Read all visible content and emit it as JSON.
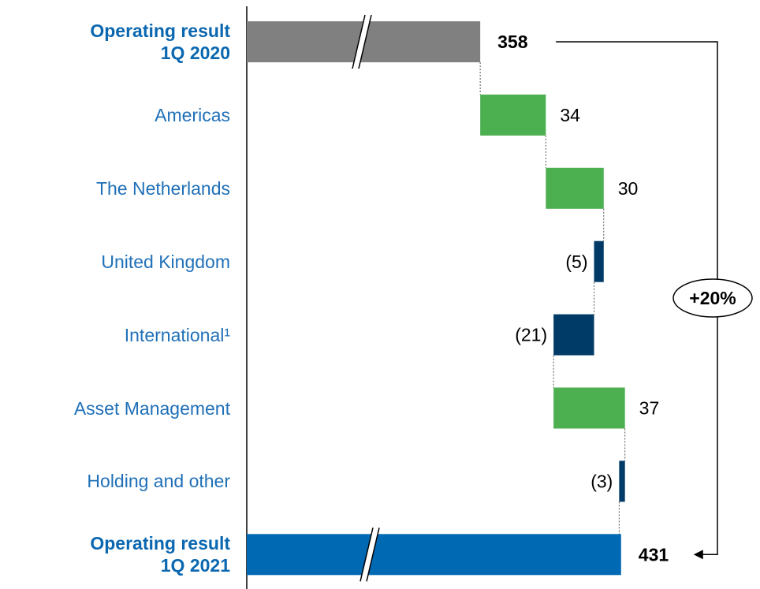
{
  "chart_data": {
    "type": "waterfall",
    "categories": [
      "Operating result\n1Q 2020",
      "Americas",
      "The Netherlands",
      "United Kingdom",
      "International¹",
      "Asset Management",
      "Holding and other",
      "Operating result\n1Q 2021"
    ],
    "values": [
      358,
      34,
      30,
      -5,
      -21,
      37,
      -3,
      431
    ],
    "value_labels": [
      "358",
      "34",
      "30",
      "(5)",
      "(21)",
      "37",
      "(3)",
      "431"
    ],
    "is_total": [
      true,
      false,
      false,
      false,
      false,
      false,
      false,
      true
    ],
    "colors": [
      "#808080",
      "#4caf50",
      "#4caf50",
      "#003a66",
      "#003a66",
      "#4caf50",
      "#003a66",
      "#0069b4"
    ],
    "xlim": [
      237,
      503
    ],
    "annotation": "+20%"
  }
}
